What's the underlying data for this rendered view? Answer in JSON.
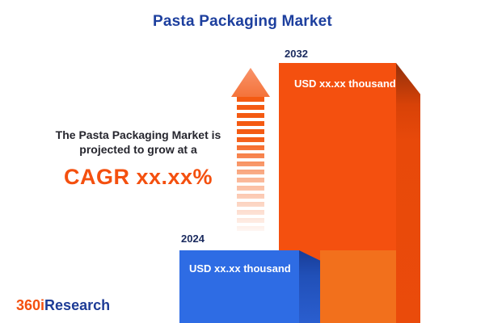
{
  "title": "Pasta Packaging Market",
  "description": {
    "line1": "The Pasta Packaging Market is",
    "line2": "projected to grow at a",
    "cagr": "CAGR xx.xx%"
  },
  "logo": {
    "part1": "360i",
    "part2": "Research"
  },
  "colors": {
    "accent_orange": "#f4500f",
    "accent_orange_light": "#f2701c",
    "accent_blue": "#2e6ce4",
    "title_navy": "#1d3f9e",
    "year_label_navy": "#1a2a5e",
    "value_label_white": "#ffffff"
  },
  "chart_data": {
    "type": "bar",
    "title": "Pasta Packaging Market",
    "categories": [
      "2024",
      "2032"
    ],
    "bars": [
      {
        "year": "2024",
        "value_label": "USD xx.xx thousand",
        "color": "#2e6ce4"
      },
      {
        "year": "2032",
        "value_label": "USD xx.xx thousand",
        "color": "#f4500f"
      }
    ],
    "legend": "none",
    "axes": "none",
    "annotations": [
      "The Pasta Packaging Market is projected to grow at a",
      "CAGR xx.xx%"
    ]
  }
}
